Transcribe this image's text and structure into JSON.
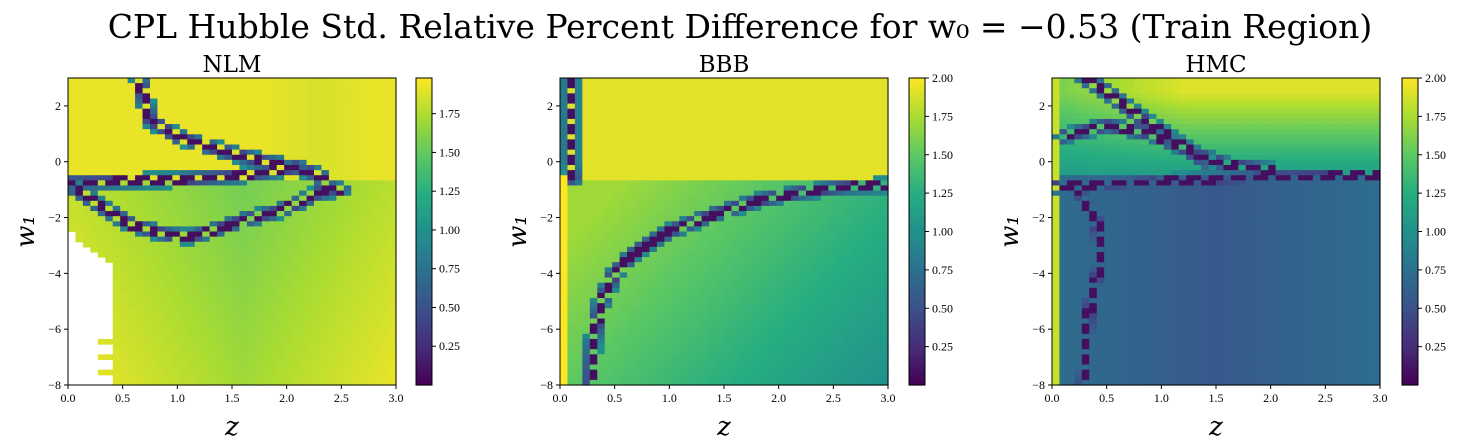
{
  "figure": {
    "title": "CPL Hubble Std. Relative Percent Difference for w₀ = −0.53 (Train Region)"
  },
  "colormap": "viridis",
  "chart_data": [
    {
      "type": "heatmap",
      "title": "NLM",
      "xlabel": "z",
      "ylabel": "w₁",
      "xlim": [
        0.0,
        3.0
      ],
      "ylim": [
        -8,
        3
      ],
      "x_ticks": [
        "0.0",
        "0.5",
        "1.0",
        "1.5",
        "2.0",
        "2.5",
        "3.0"
      ],
      "y_ticks": [
        "−8",
        "−6",
        "−4",
        "−2",
        "0",
        "2"
      ],
      "colorbar": {
        "min": 0.0,
        "max": 1.98,
        "ticks": [
          "0.25",
          "0.50",
          "0.75",
          "1.00",
          "1.25",
          "1.50",
          "1.75"
        ]
      },
      "features": [
        {
          "kind": "low_band",
          "points": [
            [
              0.0,
              -0.8
            ],
            [
              0.3,
              -1.6
            ],
            [
              0.6,
              -2.3
            ],
            [
              0.9,
              -2.6
            ],
            [
              1.1,
              -2.7
            ],
            [
              1.3,
              -2.5
            ],
            [
              1.6,
              -2.1
            ],
            [
              1.9,
              -1.8
            ],
            [
              2.1,
              -1.5
            ],
            [
              2.3,
              -1.1
            ],
            [
              2.5,
              -1.0
            ]
          ]
        },
        {
          "kind": "low_band",
          "points": [
            [
              0.65,
              3.0
            ],
            [
              0.75,
              1.5
            ],
            [
              1.0,
              0.9
            ],
            [
              1.4,
              0.4
            ],
            [
              1.8,
              0.0
            ],
            [
              2.1,
              -0.2
            ],
            [
              2.3,
              -0.5
            ],
            [
              2.4,
              -1.0
            ]
          ]
        },
        {
          "kind": "low_band",
          "points": [
            [
              0.0,
              -0.75
            ],
            [
              0.5,
              -0.7
            ],
            [
              1.0,
              -0.65
            ],
            [
              1.6,
              -0.5
            ],
            [
              2.1,
              -0.2
            ]
          ]
        },
        {
          "kind": "missing_region",
          "note": "white, no data",
          "x_range": [
            0.0,
            0.38
          ],
          "y_range": [
            -8,
            -2.5
          ]
        }
      ]
    },
    {
      "type": "heatmap",
      "title": "BBB",
      "xlabel": "z",
      "ylabel": "w₁",
      "xlim": [
        0.0,
        3.0
      ],
      "ylim": [
        -8,
        3
      ],
      "x_ticks": [
        "0.0",
        "0.5",
        "1.0",
        "1.5",
        "2.0",
        "2.5",
        "3.0"
      ],
      "y_ticks": [
        "−8",
        "−6",
        "−4",
        "−2",
        "0",
        "2"
      ],
      "colorbar": {
        "min": 0.0,
        "max": 2.0,
        "ticks": [
          "0.25",
          "0.50",
          "0.75",
          "1.00",
          "1.25",
          "1.50",
          "1.75",
          "2.00"
        ]
      },
      "features": [
        {
          "kind": "low_band",
          "points": [
            [
              0.28,
              -8.0
            ],
            [
              0.3,
              -6.5
            ],
            [
              0.38,
              -5.0
            ],
            [
              0.5,
              -4.0
            ],
            [
              0.7,
              -3.2
            ],
            [
              1.0,
              -2.5
            ],
            [
              1.4,
              -1.9
            ],
            [
              1.8,
              -1.4
            ],
            [
              2.2,
              -1.1
            ],
            [
              2.6,
              -0.9
            ],
            [
              3.0,
              -0.85
            ]
          ]
        },
        {
          "kind": "low_band",
          "points": [
            [
              0.1,
              3.0
            ],
            [
              0.1,
              0.0
            ],
            [
              0.12,
              -0.6
            ]
          ]
        }
      ]
    },
    {
      "type": "heatmap",
      "title": "HMC",
      "xlabel": "z",
      "ylabel": "w₁",
      "xlim": [
        0.0,
        3.0
      ],
      "ylim": [
        -8,
        3
      ],
      "x_ticks": [
        "0.0",
        "0.5",
        "1.0",
        "1.5",
        "2.0",
        "2.5",
        "3.0"
      ],
      "y_ticks": [
        "−8",
        "−6",
        "−4",
        "−2",
        "0",
        "2"
      ],
      "colorbar": {
        "min": 0.0,
        "max": 2.0,
        "ticks": [
          "0.25",
          "0.50",
          "0.75",
          "1.00",
          "1.25",
          "1.50",
          "1.75",
          "2.00"
        ]
      },
      "features": [
        {
          "kind": "low_band",
          "points": [
            [
              0.3,
              3.0
            ],
            [
              0.5,
              2.5
            ],
            [
              0.8,
              1.6
            ],
            [
              1.1,
              0.8
            ],
            [
              1.3,
              0.3
            ],
            [
              1.6,
              -0.1
            ],
            [
              2.0,
              -0.3
            ]
          ]
        },
        {
          "kind": "low_band",
          "points": [
            [
              0.1,
              0.9
            ],
            [
              0.5,
              1.3
            ],
            [
              0.9,
              1.0
            ],
            [
              1.2,
              0.5
            ],
            [
              1.4,
              0.0
            ]
          ]
        },
        {
          "kind": "low_band",
          "points": [
            [
              0.2,
              -0.8
            ],
            [
              0.4,
              -2.0
            ],
            [
              0.45,
              -3.5
            ],
            [
              0.35,
              -5.0
            ],
            [
              0.28,
              -8.0
            ]
          ]
        },
        {
          "kind": "low_band",
          "points": [
            [
              0.0,
              -0.9
            ],
            [
              1.0,
              -0.7
            ],
            [
              2.0,
              -0.55
            ],
            [
              3.0,
              -0.5
            ]
          ]
        }
      ]
    }
  ]
}
